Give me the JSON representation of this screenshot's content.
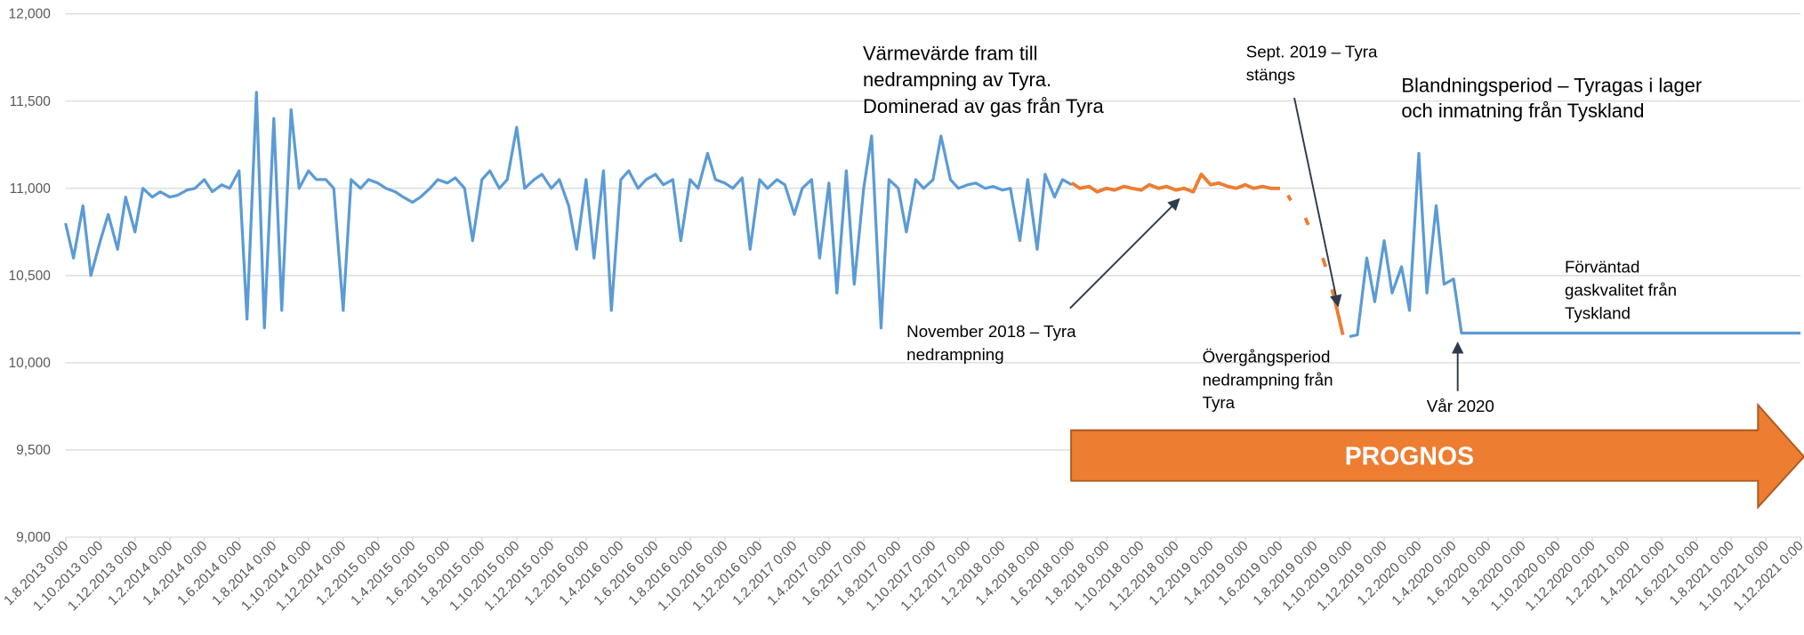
{
  "chart_data": {
    "type": "line",
    "ylim": [
      9000,
      12000
    ],
    "yticks": [
      {
        "value": 9000,
        "label": "9,000"
      },
      {
        "value": 9500,
        "label": "9,500"
      },
      {
        "value": 10000,
        "label": "10,000"
      },
      {
        "value": 10500,
        "label": "10,500"
      },
      {
        "value": 11000,
        "label": "11,000"
      },
      {
        "value": 11500,
        "label": "11,500"
      },
      {
        "value": 12000,
        "label": "12,000"
      }
    ],
    "grid": true,
    "xticks": [
      "1.8.2013 0:00",
      "1.10.2013 0:00",
      "1.12.2013 0:00",
      "1.2.2014 0:00",
      "1.4.2014 0:00",
      "1.6.2014 0:00",
      "1.8.2014 0:00",
      "1.10.2014 0:00",
      "1.12.2014 0:00",
      "1.2.2015 0:00",
      "1.4.2015 0:00",
      "1.6.2015 0:00",
      "1.8.2015 0:00",
      "1.10.2015 0:00",
      "1.12.2015 0:00",
      "1.2.2016 0:00",
      "1.4.2016 0:00",
      "1.6.2016 0:00",
      "1.8.2016 0:00",
      "1.10.2016 0:00",
      "1.12.2016 0:00",
      "1.2.2017 0:00",
      "1.4.2017 0:00",
      "1.6.2017 0:00",
      "1.8.2017 0:00",
      "1.10.2017 0:00",
      "1.12.2017 0:00",
      "1.2.2018 0:00",
      "1.4.2018 0:00",
      "1.6.2018 0:00",
      "1.8.2018 0:00",
      "1.10.2018 0:00",
      "1.12.2018 0:00",
      "1.2.2019 0:00",
      "1.4.2019 0:00",
      "1.6.2019 0:00",
      "1.8.2019 0:00",
      "1.10.2019 0:00",
      "1.12.2019 0:00",
      "1.2.2020 0:00",
      "1.4.2020 0:00",
      "1.6.2020 0:00",
      "1.8.2020 0:00",
      "1.10.2020 0:00",
      "1.12.2020 0:00",
      "1.2.2021 0:00",
      "1.4.2021 0:00",
      "1.6.2021 0:00",
      "1.8.2021 0:00",
      "1.10.2021 0:00",
      "1.12.2021 0:00"
    ],
    "series": [
      {
        "color": "#5b9bd5",
        "x": [
          "1.8.2013 0:00",
          "15.8.2013 0:00",
          "1.9.2013 0:00",
          "15.9.2013 0:00",
          "1.10.2013 0:00",
          "15.10.2013 0:00",
          "1.11.2013 0:00",
          "15.11.2013 0:00",
          "1.12.2013 0:00",
          "15.12.2013 0:00",
          "1.1.2014 0:00",
          "15.1.2014 0:00",
          "1.2.2014 0:00",
          "15.2.2014 0:00",
          "1.3.2014 0:00",
          "15.3.2014 0:00",
          "1.4.2014 0:00",
          "15.4.2014 0:00",
          "1.5.2014 0:00",
          "15.5.2014 0:00",
          "1.6.2014 0:00",
          "15.6.2014 0:00",
          "1.7.2014 0:00",
          "15.7.2014 0:00",
          "1.8.2014 0:00",
          "15.8.2014 0:00",
          "1.9.2014 0:00",
          "15.9.2014 0:00",
          "1.10.2014 0:00",
          "15.10.2014 0:00",
          "1.11.2014 0:00",
          "15.11.2014 0:00",
          "1.12.2014 0:00",
          "15.12.2014 0:00",
          "1.1.2015 0:00",
          "15.1.2015 0:00",
          "1.2.2015 0:00",
          "15.2.2015 0:00",
          "1.3.2015 0:00",
          "15.3.2015 0:00",
          "1.4.2015 0:00",
          "15.4.2015 0:00",
          "1.5.2015 0:00",
          "15.5.2015 0:00",
          "1.6.2015 0:00",
          "15.6.2015 0:00",
          "1.7.2015 0:00",
          "15.7.2015 0:00",
          "1.8.2015 0:00",
          "15.8.2015 0:00",
          "1.9.2015 0:00",
          "15.9.2015 0:00",
          "1.10.2015 0:00",
          "15.10.2015 0:00",
          "1.11.2015 0:00",
          "15.11.2015 0:00",
          "1.12.2015 0:00",
          "15.12.2015 0:00",
          "1.1.2016 0:00",
          "15.1.2016 0:00",
          "1.2.2016 0:00",
          "15.2.2016 0:00",
          "1.3.2016 0:00",
          "15.3.2016 0:00",
          "1.4.2016 0:00",
          "15.4.2016 0:00",
          "1.5.2016 0:00",
          "15.5.2016 0:00",
          "1.6.2016 0:00",
          "15.6.2016 0:00",
          "1.7.2016 0:00",
          "15.7.2016 0:00",
          "1.8.2016 0:00",
          "15.8.2016 0:00",
          "1.9.2016 0:00",
          "15.9.2016 0:00",
          "1.10.2016 0:00",
          "15.10.2016 0:00",
          "1.11.2016 0:00",
          "15.11.2016 0:00",
          "1.12.2016 0:00",
          "15.12.2016 0:00",
          "1.1.2017 0:00",
          "15.1.2017 0:00",
          "1.2.2017 0:00",
          "15.2.2017 0:00",
          "1.3.2017 0:00",
          "15.3.2017 0:00",
          "1.4.2017 0:00",
          "15.4.2017 0:00",
          "1.5.2017 0:00",
          "15.5.2017 0:00",
          "1.6.2017 0:00",
          "15.6.2017 0:00",
          "1.7.2017 0:00",
          "15.7.2017 0:00",
          "1.8.2017 0:00",
          "15.8.2017 0:00",
          "1.9.2017 0:00",
          "15.9.2017 0:00",
          "1.10.2017 0:00",
          "15.10.2017 0:00",
          "1.11.2017 0:00",
          "15.11.2017 0:00",
          "1.12.2017 0:00",
          "15.12.2017 0:00",
          "1.1.2018 0:00",
          "15.1.2018 0:00",
          "1.2.2018 0:00",
          "15.2.2018 0:00",
          "1.3.2018 0:00",
          "15.3.2018 0:00",
          "1.4.2018 0:00",
          "15.4.2018 0:00",
          "1.5.2018 0:00",
          "15.5.2018 0:00",
          "1.6.2018 0:00",
          "1.9.2019 0:00",
          "1.10.2019 0:00",
          "15.10.2019 0:00",
          "1.11.2019 0:00",
          "15.11.2019 0:00",
          "1.12.2019 0:00",
          "15.12.2019 0:00",
          "1.1.2020 0:00",
          "15.1.2020 0:00",
          "1.2.2020 0:00",
          "15.2.2020 0:00",
          "1.3.2020 0:00",
          "15.3.2020 0:00",
          "1.4.2020 0:00",
          "15.4.2020 0:00",
          "1.5.2020 0:00",
          "1.6.2020 0:00",
          "1.7.2020 0:00",
          "1.8.2020 0:00",
          "1.9.2020 0:00",
          "1.10.2020 0:00",
          "1.11.2020 0:00",
          "1.12.2020 0:00",
          "1.1.2021 0:00",
          "1.2.2021 0:00",
          "1.3.2021 0:00",
          "1.4.2021 0:00",
          "1.5.2021 0:00",
          "1.6.2021 0:00",
          "1.7.2021 0:00",
          "1.8.2021 0:00",
          "1.9.2021 0:00",
          "1.10.2021 0:00",
          "1.11.2021 0:00",
          "1.12.2021 0:00"
        ],
        "values": [
          10800,
          10600,
          10900,
          10500,
          10700,
          10850,
          10650,
          10950,
          10750,
          11000,
          10950,
          10980,
          10950,
          10960,
          10990,
          11000,
          11050,
          10980,
          11020,
          11000,
          11100,
          10250,
          11550,
          10200,
          11400,
          10300,
          11450,
          11000,
          11100,
          11050,
          11050,
          11000,
          10300,
          11050,
          11000,
          11050,
          11030,
          11000,
          10980,
          10950,
          10920,
          10950,
          11000,
          11050,
          11030,
          11060,
          11000,
          10700,
          11050,
          11100,
          11000,
          11050,
          11350,
          11000,
          11050,
          11080,
          11000,
          11050,
          10900,
          10650,
          11050,
          10600,
          11100,
          10300,
          11050,
          11100,
          11000,
          11050,
          11080,
          11020,
          11050,
          10700,
          11050,
          11000,
          11200,
          11050,
          11030,
          11000,
          11060,
          10650,
          11050,
          11000,
          11050,
          11020,
          10850,
          11000,
          11050,
          10600,
          11030,
          10400,
          11100,
          10450,
          11000,
          11300,
          10200,
          11050,
          11000,
          10750,
          11050,
          11000,
          11050,
          11300,
          11050,
          11000,
          11020,
          11030,
          11000,
          11010,
          10990,
          11000,
          10700,
          11050,
          10650,
          11080,
          10950,
          11050,
          11020,
          null,
          10150,
          10160,
          10600,
          10350,
          10700,
          10400,
          10550,
          10300,
          11200,
          10400,
          10900,
          10450,
          10480,
          10170,
          10170,
          10170,
          10170,
          10170,
          10170,
          10170,
          10170,
          10170,
          10170,
          10170,
          10170,
          10170,
          10170,
          10170,
          10170,
          10170,
          10170,
          10170,
          10170,
          10170
        ]
      },
      {
        "color": "#ed7d31",
        "x": [
          "1.6.2018 0:00",
          "15.6.2018 0:00",
          "1.7.2018 0:00",
          "15.7.2018 0:00",
          "1.8.2018 0:00",
          "15.8.2018 0:00",
          "1.9.2018 0:00",
          "15.9.2018 0:00",
          "1.10.2018 0:00",
          "15.10.2018 0:00",
          "1.11.2018 0:00",
          "15.11.2018 0:00",
          "1.12.2018 0:00",
          "15.12.2018 0:00",
          "1.1.2019 0:00",
          "15.1.2019 0:00",
          "1.2.2019 0:00",
          "15.2.2019 0:00",
          "1.3.2019 0:00",
          "15.3.2019 0:00",
          "1.4.2019 0:00",
          "15.4.2019 0:00",
          "1.5.2019 0:00",
          "15.5.2019 0:00",
          "1.6.2019 0:00",
          "10.6.2019 0:00",
          "15.6.2019 0:00",
          "20.6.2019 0:00",
          "1.7.2019 0:00",
          "15.7.2019 0:00",
          "20.7.2019 0:00",
          "1.8.2019 0:00",
          "15.8.2019 0:00",
          "20.8.2019 0:00",
          "25.8.2019 0:00",
          "1.9.2019 0:00",
          "10.9.2019 0:00",
          "20.9.2019 0:00"
        ],
        "values": [
          11030,
          11000,
          11010,
          10980,
          11000,
          10990,
          11010,
          11000,
          10990,
          11020,
          11000,
          11010,
          10990,
          11000,
          10980,
          11080,
          11020,
          11030,
          11010,
          11000,
          11020,
          11000,
          11010,
          11000,
          11000,
          null,
          10960,
          10930,
          null,
          10830,
          10790,
          null,
          10600,
          10550,
          null,
          10420,
          10300,
          10160
        ]
      }
    ],
    "annotations": [
      {
        "lines": [
          "Värmevärde fram till",
          "nedrampning av Tyra.",
          "Dominerad av gas från Tyra"
        ]
      },
      {
        "lines": [
          "Sept. 2019 – Tyra",
          "stängs"
        ]
      },
      {
        "lines": [
          "Blandningsperiod – Tyragas i lager",
          "och inmatning från Tyskland"
        ]
      },
      {
        "lines": [
          "November 2018 – Tyra",
          "nedrampning"
        ]
      },
      {
        "lines": [
          "Övergångsperiod",
          "nedrampning från",
          "Tyra"
        ]
      },
      {
        "lines": [
          "Vår 2020"
        ]
      },
      {
        "lines": [
          "Förväntad",
          "gaskvalitet från",
          "Tyskland"
        ]
      },
      {
        "lines": [
          "PROGNOS"
        ]
      }
    ]
  }
}
